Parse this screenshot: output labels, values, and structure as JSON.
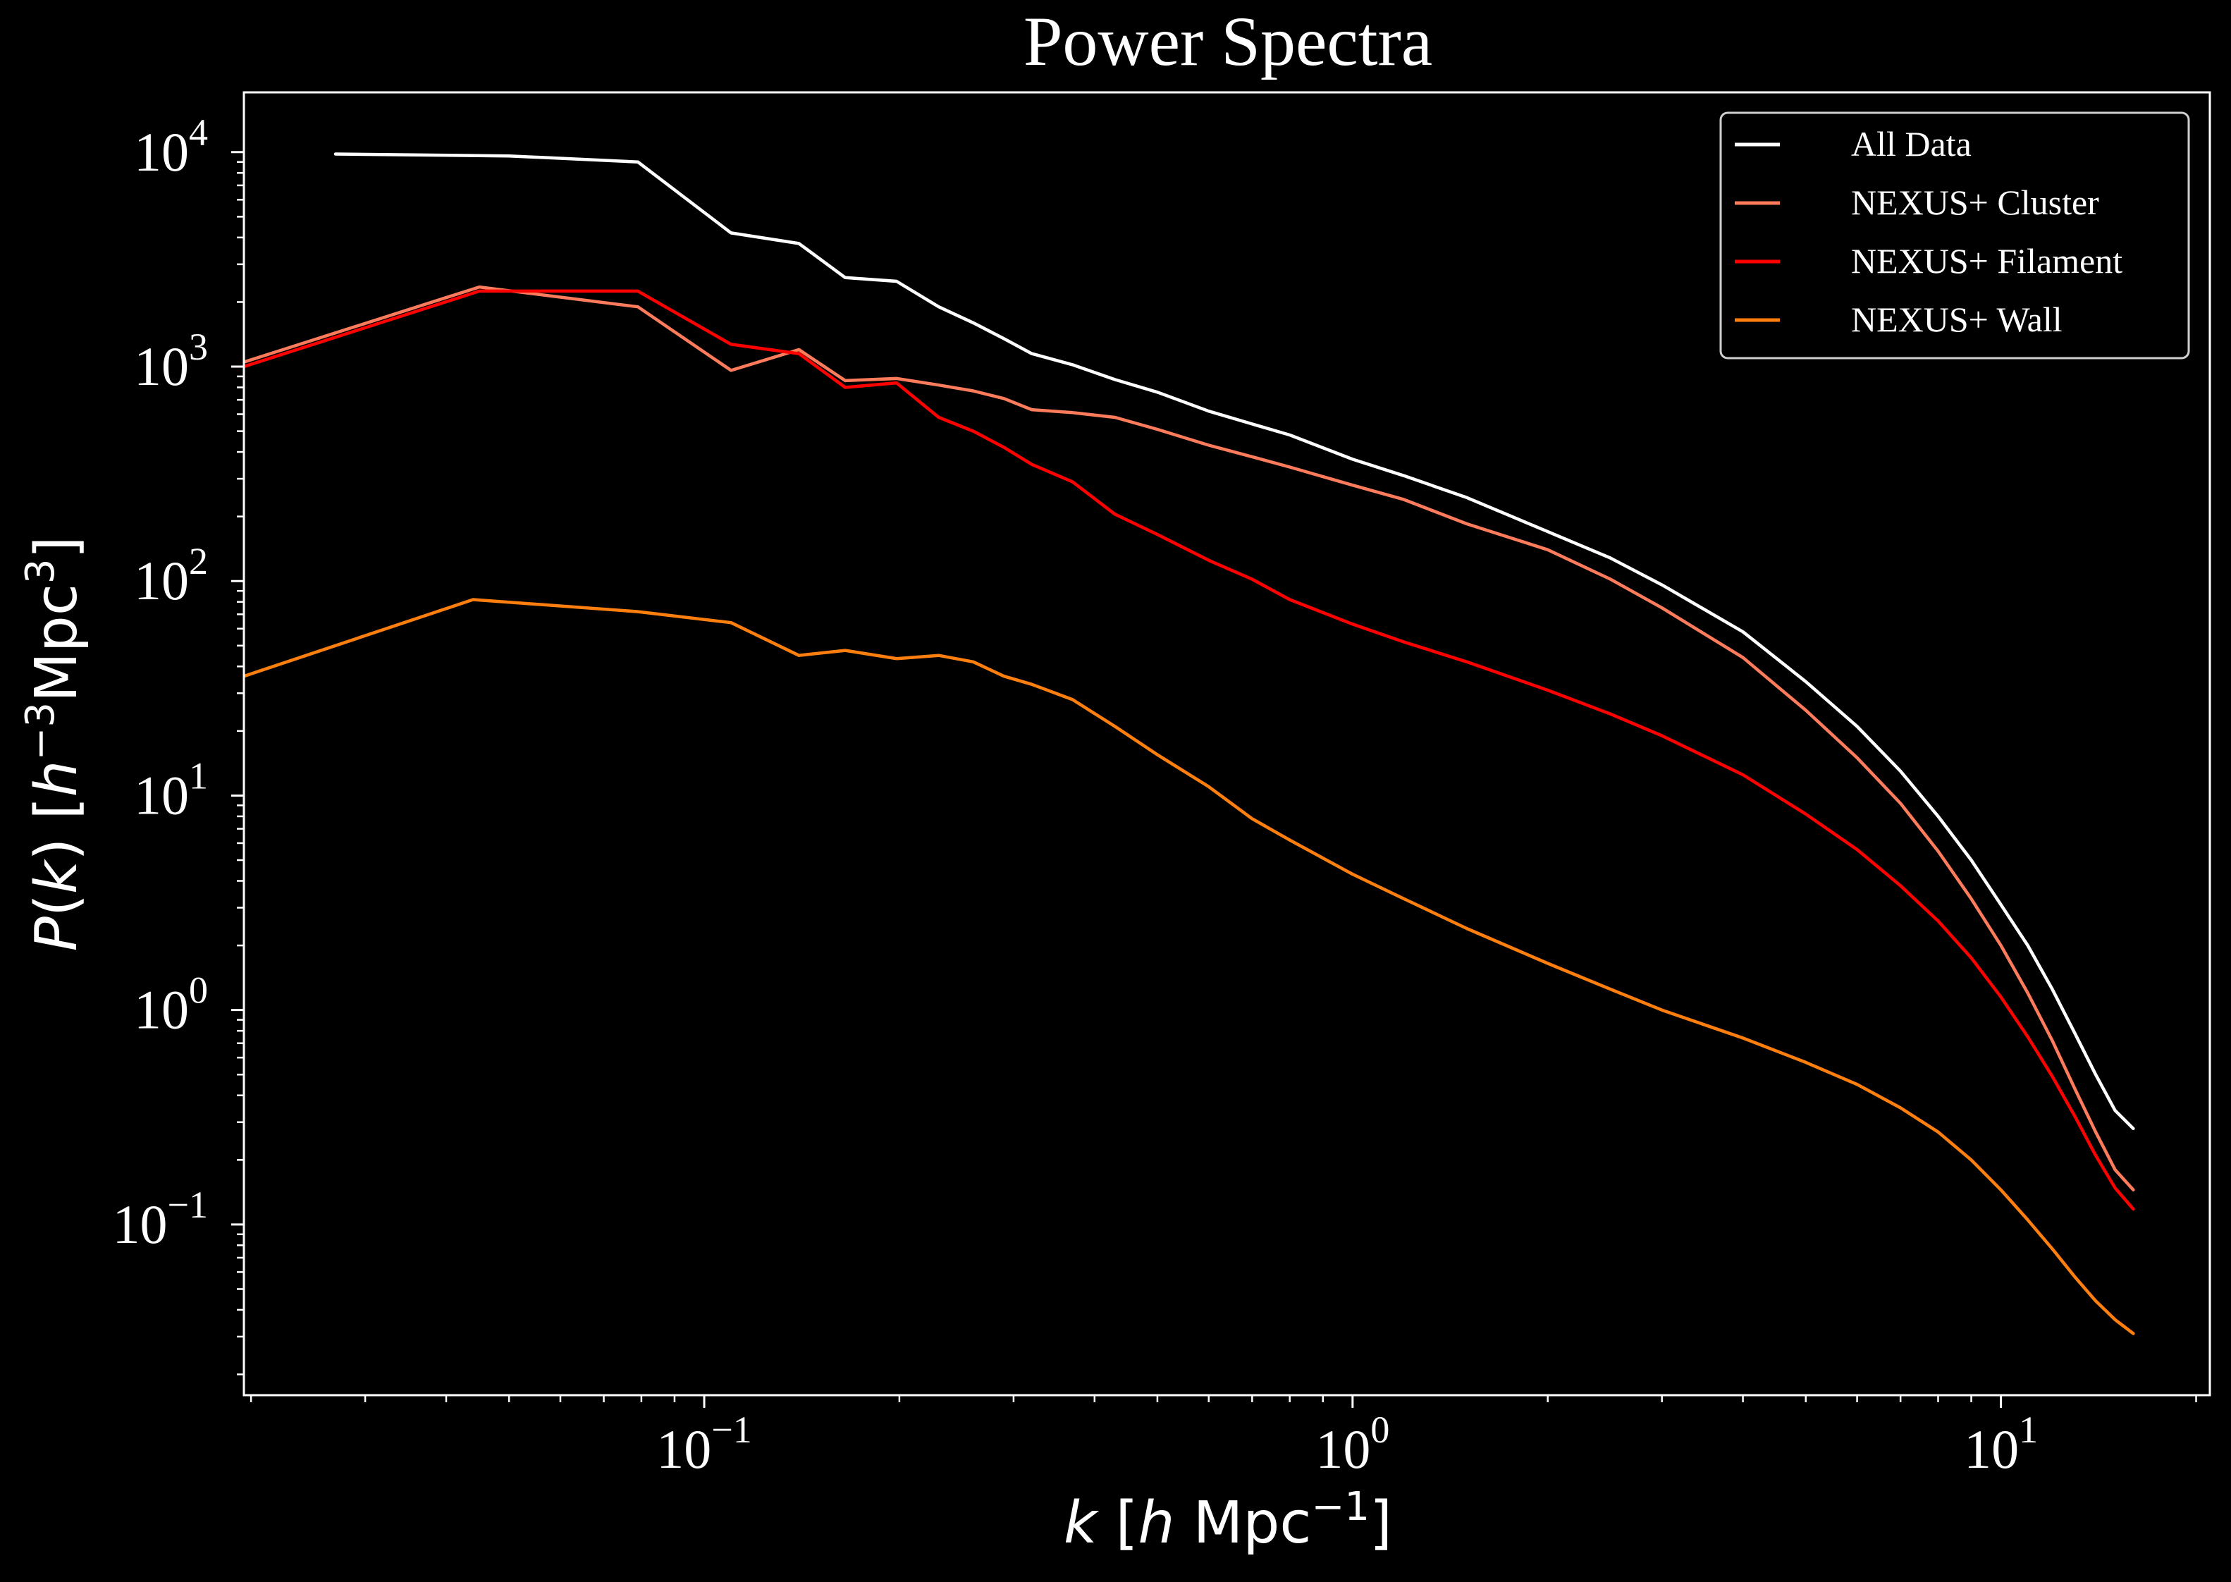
{
  "chart_data": {
    "type": "line",
    "title": "Power Spectra",
    "xlabel": "k [h Mpc⁻¹]",
    "ylabel": "P(k) [h⁻³Mpc³]",
    "xscale": "log",
    "yscale": "log",
    "xlim": [
      0.0195,
      21
    ],
    "ylim": [
      0.016,
      19000
    ],
    "xticks": [
      {
        "value": 0.1,
        "base": "10",
        "exp": "−1"
      },
      {
        "value": 1,
        "base": "10",
        "exp": "0"
      },
      {
        "value": 10,
        "base": "10",
        "exp": "1"
      }
    ],
    "yticks": [
      {
        "value": 0.1,
        "base": "10",
        "exp": "−1"
      },
      {
        "value": 1,
        "base": "10",
        "exp": "0"
      },
      {
        "value": 10,
        "base": "10",
        "exp": "1"
      },
      {
        "value": 100,
        "base": "10",
        "exp": "2"
      },
      {
        "value": 1000,
        "base": "10",
        "exp": "3"
      },
      {
        "value": 10000,
        "base": "10",
        "exp": "4"
      }
    ],
    "grid": false,
    "legend_position": "top-right",
    "series": [
      {
        "name": "All Data",
        "color": "#ffffff",
        "points": [
          [
            0.027,
            9800
          ],
          [
            0.05,
            9600
          ],
          [
            0.079,
            9000
          ],
          [
            0.11,
            4200
          ],
          [
            0.14,
            3750
          ],
          [
            0.165,
            2600
          ],
          [
            0.198,
            2500
          ],
          [
            0.23,
            1900
          ],
          [
            0.26,
            1600
          ],
          [
            0.29,
            1350
          ],
          [
            0.32,
            1150
          ],
          [
            0.37,
            1020
          ],
          [
            0.43,
            870
          ],
          [
            0.5,
            760
          ],
          [
            0.6,
            620
          ],
          [
            0.7,
            540
          ],
          [
            0.8,
            480
          ],
          [
            1.0,
            370
          ],
          [
            1.2,
            310
          ],
          [
            1.5,
            245
          ],
          [
            2.0,
            170
          ],
          [
            2.5,
            128
          ],
          [
            3.0,
            96
          ],
          [
            4.0,
            58
          ],
          [
            5.0,
            34
          ],
          [
            6.0,
            21
          ],
          [
            7.0,
            13
          ],
          [
            8.0,
            8
          ],
          [
            9.0,
            5
          ],
          [
            10.0,
            3.1
          ],
          [
            11.0,
            2.0
          ],
          [
            12.0,
            1.25
          ],
          [
            13.0,
            0.78
          ],
          [
            14.0,
            0.5
          ],
          [
            15.0,
            0.34
          ],
          [
            16.0,
            0.28
          ]
        ]
      },
      {
        "name": "NEXUS+ Cluster",
        "color": "#fe7b5b",
        "points": [
          [
            0.0195,
            1050
          ],
          [
            0.045,
            2350
          ],
          [
            0.079,
            1900
          ],
          [
            0.11,
            960
          ],
          [
            0.14,
            1200
          ],
          [
            0.165,
            860
          ],
          [
            0.198,
            880
          ],
          [
            0.23,
            820
          ],
          [
            0.26,
            770
          ],
          [
            0.29,
            710
          ],
          [
            0.32,
            630
          ],
          [
            0.37,
            610
          ],
          [
            0.43,
            580
          ],
          [
            0.5,
            510
          ],
          [
            0.6,
            430
          ],
          [
            0.7,
            380
          ],
          [
            0.8,
            340
          ],
          [
            1.0,
            280
          ],
          [
            1.2,
            240
          ],
          [
            1.5,
            185
          ],
          [
            2.0,
            140
          ],
          [
            2.5,
            102
          ],
          [
            3.0,
            75
          ],
          [
            4.0,
            44
          ],
          [
            5.0,
            25
          ],
          [
            6.0,
            15
          ],
          [
            7.0,
            9.2
          ],
          [
            8.0,
            5.5
          ],
          [
            9.0,
            3.3
          ],
          [
            10.0,
            2.0
          ],
          [
            11.0,
            1.2
          ],
          [
            12.0,
            0.72
          ],
          [
            13.0,
            0.43
          ],
          [
            14.0,
            0.27
          ],
          [
            15.0,
            0.18
          ],
          [
            16.0,
            0.145
          ]
        ]
      },
      {
        "name": "NEXUS+ Filament",
        "color": "#ff0000",
        "points": [
          [
            0.0195,
            1000
          ],
          [
            0.045,
            2250
          ],
          [
            0.079,
            2250
          ],
          [
            0.11,
            1270
          ],
          [
            0.14,
            1150
          ],
          [
            0.165,
            800
          ],
          [
            0.198,
            840
          ],
          [
            0.23,
            580
          ],
          [
            0.26,
            500
          ],
          [
            0.29,
            420
          ],
          [
            0.32,
            350
          ],
          [
            0.37,
            290
          ],
          [
            0.43,
            205
          ],
          [
            0.5,
            165
          ],
          [
            0.6,
            125
          ],
          [
            0.7,
            102
          ],
          [
            0.8,
            82
          ],
          [
            1.0,
            63
          ],
          [
            1.2,
            52
          ],
          [
            1.5,
            42
          ],
          [
            2.0,
            31
          ],
          [
            2.5,
            24
          ],
          [
            3.0,
            19
          ],
          [
            4.0,
            12.5
          ],
          [
            5.0,
            8.2
          ],
          [
            6.0,
            5.6
          ],
          [
            7.0,
            3.8
          ],
          [
            8.0,
            2.6
          ],
          [
            9.0,
            1.75
          ],
          [
            10.0,
            1.15
          ],
          [
            11.0,
            0.75
          ],
          [
            12.0,
            0.49
          ],
          [
            13.0,
            0.32
          ],
          [
            14.0,
            0.21
          ],
          [
            15.0,
            0.148
          ],
          [
            16.0,
            0.118
          ]
        ]
      },
      {
        "name": "NEXUS+ Wall",
        "color": "#ff7f0e",
        "points": [
          [
            0.0195,
            36
          ],
          [
            0.044,
            82
          ],
          [
            0.079,
            72
          ],
          [
            0.11,
            64
          ],
          [
            0.14,
            45
          ],
          [
            0.165,
            47.5
          ],
          [
            0.198,
            43.5
          ],
          [
            0.23,
            45
          ],
          [
            0.26,
            42
          ],
          [
            0.29,
            36
          ],
          [
            0.32,
            33
          ],
          [
            0.37,
            28
          ],
          [
            0.43,
            21
          ],
          [
            0.5,
            15.5
          ],
          [
            0.6,
            11
          ],
          [
            0.7,
            7.8
          ],
          [
            0.8,
            6.2
          ],
          [
            1.0,
            4.3
          ],
          [
            1.2,
            3.3
          ],
          [
            1.5,
            2.4
          ],
          [
            2.0,
            1.65
          ],
          [
            2.5,
            1.25
          ],
          [
            3.0,
            1.0
          ],
          [
            4.0,
            0.74
          ],
          [
            5.0,
            0.57
          ],
          [
            6.0,
            0.45
          ],
          [
            7.0,
            0.35
          ],
          [
            8.0,
            0.27
          ],
          [
            9.0,
            0.2
          ],
          [
            10.0,
            0.145
          ],
          [
            11.0,
            0.105
          ],
          [
            12.0,
            0.077
          ],
          [
            13.0,
            0.057
          ],
          [
            14.0,
            0.044
          ],
          [
            15.0,
            0.036
          ],
          [
            16.0,
            0.031
          ]
        ]
      }
    ]
  }
}
